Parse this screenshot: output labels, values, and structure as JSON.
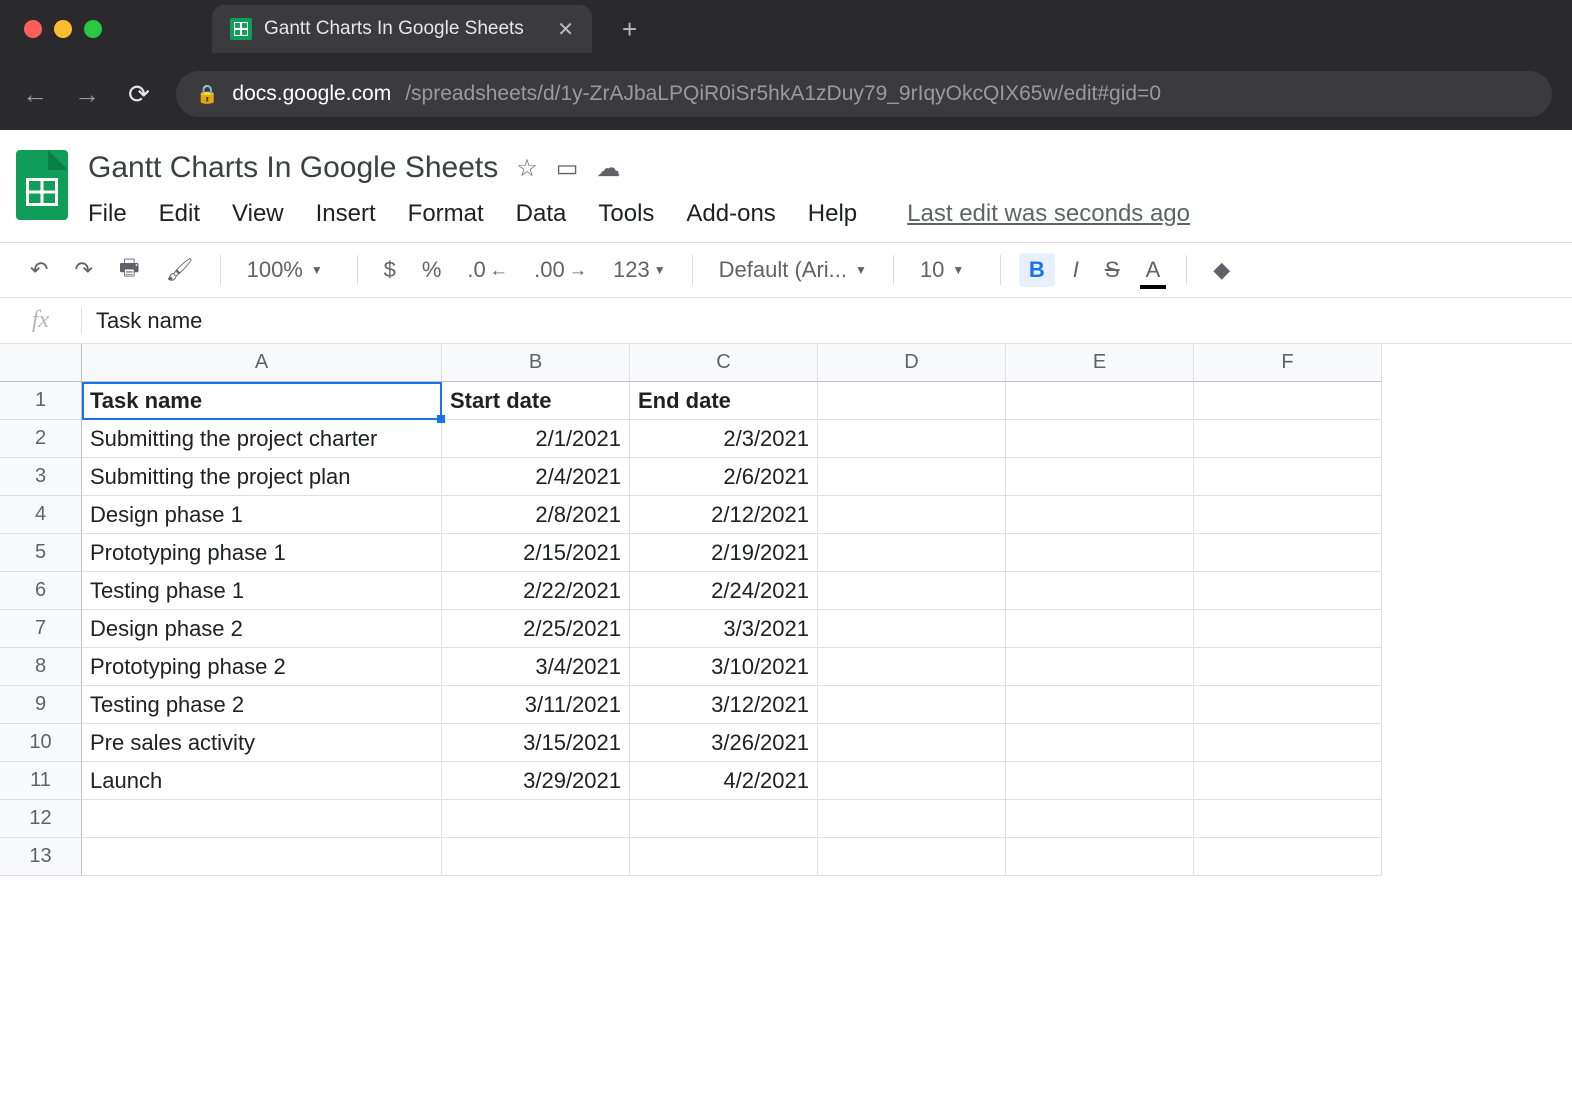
{
  "browser": {
    "tab_title": "Gantt Charts In Google Sheets",
    "url_host": "docs.google.com",
    "url_path": "/spreadsheets/d/1y-ZrAJbaLPQiR0iSr5hkA1zDuy79_9rIqyOkcQIX65w/edit#gid=0"
  },
  "doc": {
    "title": "Gantt Charts In Google Sheets",
    "last_edit": "Last edit was seconds ago"
  },
  "menus": {
    "file": "File",
    "edit": "Edit",
    "view": "View",
    "insert": "Insert",
    "format": "Format",
    "data": "Data",
    "tools": "Tools",
    "addons": "Add-ons",
    "help": "Help"
  },
  "toolbar": {
    "zoom": "100%",
    "currency": "$",
    "percent": "%",
    "dec_less": ".0",
    "dec_more": ".00",
    "numfmt": "123",
    "font": "Default (Ari...",
    "fontsize": "10",
    "bold": "B",
    "italic": "I",
    "strike": "S",
    "textcolor": "A"
  },
  "formula": {
    "fx": "fx",
    "value": "Task name"
  },
  "grid": {
    "columns": [
      "A",
      "B",
      "C",
      "D",
      "E",
      "F"
    ],
    "row_count": 13,
    "selected_cell": "A1",
    "header_row": {
      "a": "Task name",
      "b": "Start date",
      "c": "End date"
    },
    "rows": [
      {
        "a": "Submitting the project charter",
        "b": "2/1/2021",
        "c": "2/3/2021"
      },
      {
        "a": "Submitting the project plan",
        "b": "2/4/2021",
        "c": "2/6/2021"
      },
      {
        "a": "Design phase 1",
        "b": "2/8/2021",
        "c": "2/12/2021"
      },
      {
        "a": "Prototyping phase 1",
        "b": "2/15/2021",
        "c": "2/19/2021"
      },
      {
        "a": "Testing phase 1",
        "b": "2/22/2021",
        "c": "2/24/2021"
      },
      {
        "a": "Design phase 2",
        "b": "2/25/2021",
        "c": "3/3/2021"
      },
      {
        "a": "Prototyping phase 2",
        "b": "3/4/2021",
        "c": "3/10/2021"
      },
      {
        "a": "Testing phase 2",
        "b": "3/11/2021",
        "c": "3/12/2021"
      },
      {
        "a": "Pre sales activity",
        "b": "3/15/2021",
        "c": "3/26/2021"
      },
      {
        "a": "Launch",
        "b": "3/29/2021",
        "c": "4/2/2021"
      }
    ]
  },
  "colors": {
    "accent": "#0f9d58",
    "selection": "#1a73e8",
    "chrome_bg": "#2a2a2d",
    "grid_border": "#e0e0e0"
  }
}
